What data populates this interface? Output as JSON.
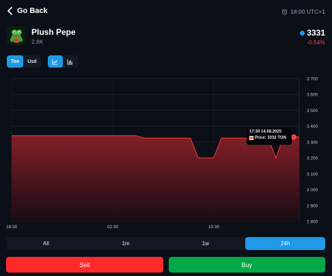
{
  "nav": {
    "back_label": "Go Back",
    "clock_text": "18:00 UTC+1"
  },
  "item": {
    "name": "Plush Pepe",
    "count": "2.8K",
    "price": "3331",
    "change": "-0.54%",
    "change_color": "#f04747"
  },
  "currency_toggle": {
    "options": [
      "Ton",
      "Usd"
    ],
    "selected": "Ton"
  },
  "chart_type_toggle": {
    "options": [
      "line-chart-icon",
      "bar-chart-icon"
    ],
    "selected": "line-chart-icon"
  },
  "tooltip": {
    "time": "17:30 14.08.2025",
    "text": "Price: 3332 TON"
  },
  "time_ranges": {
    "options": [
      "All",
      "1m",
      "1w",
      "24h"
    ],
    "selected": "24h"
  },
  "actions": {
    "sell_label": "Sell",
    "buy_label": "Buy"
  },
  "colors": {
    "accent": "#1e9ae6",
    "sell": "#ff2b2b",
    "buy": "#04a846",
    "line": "#ff3b3b"
  },
  "chart_data": {
    "type": "area",
    "x": [
      "18:30",
      "",
      "",
      "",
      "",
      "",
      "",
      "",
      "",
      "",
      "",
      "",
      "",
      "",
      "",
      "",
      "",
      "",
      "",
      "",
      "",
      "",
      "",
      "",
      "",
      "",
      "",
      "",
      "",
      "",
      "",
      "",
      "",
      "",
      "",
      "",
      "",
      ""
    ],
    "x_tick_labels": [
      "18:30",
      "02:30",
      "10:30"
    ],
    "series": [
      {
        "values": [
          3340,
          3340,
          3340,
          3340,
          3340,
          3340,
          3340,
          3340,
          3340,
          3340,
          3340,
          3340,
          3340,
          3340,
          3340,
          3340,
          3340,
          3325,
          3325,
          3325,
          3325,
          3325,
          3325,
          3325,
          3200,
          3200,
          3200,
          3325,
          3325,
          3325,
          3325,
          3325,
          3325,
          3325,
          3200,
          3335,
          3335,
          3332
        ]
      }
    ],
    "yticks": [
      2800,
      2900,
      3000,
      3100,
      3200,
      3300,
      3400,
      3500,
      3600,
      3700
    ],
    "ylim": [
      2800,
      3700
    ],
    "grid": true,
    "title": "",
    "xlabel": "",
    "ylabel": ""
  }
}
